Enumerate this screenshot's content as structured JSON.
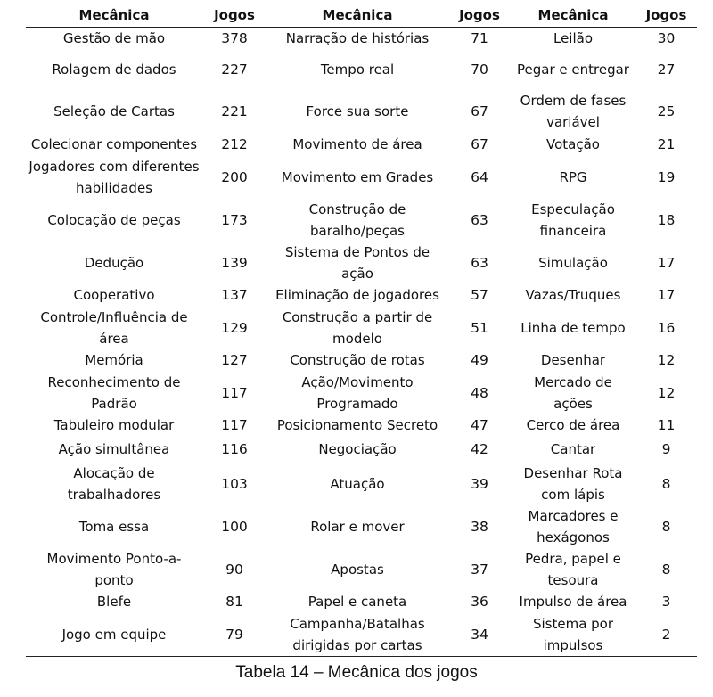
{
  "table": {
    "headers": [
      "Mecânica",
      "Jogos",
      "Mecânica",
      "Jogos",
      "Mecânica",
      "Jogos"
    ],
    "rows": [
      {
        "m1": "Gestão de mão",
        "j1": "378",
        "m2": "Narração de histórias",
        "j2": "71",
        "m3": "Leilão",
        "j3": "30"
      },
      {
        "m1": "Rolagem de dados",
        "j1": "227",
        "m2": "Tempo real",
        "j2": "70",
        "m3": "Pegar e entregar",
        "j3": "27"
      },
      {
        "m1": "Seleção de Cartas",
        "j1": "221",
        "m2": "Force sua sorte",
        "j2": "67",
        "m3": "Ordem de fases variável",
        "j3": "25"
      },
      {
        "m1": "Colecionar componentes",
        "j1": "212",
        "m2": "Movimento de área",
        "j2": "67",
        "m3": "Votação",
        "j3": "21"
      },
      {
        "m1": "Jogadores com diferentes habilidades",
        "j1": "200",
        "m2": "Movimento em Grades",
        "j2": "64",
        "m3": "RPG",
        "j3": "19"
      },
      {
        "m1": "Colocação de peças",
        "j1": "173",
        "m2": "Construção de baralho/peças",
        "j2": "63",
        "m3": "Especulação financeira",
        "j3": "18"
      },
      {
        "m1": "Dedução",
        "j1": "139",
        "m2": "Sistema de Pontos de ação",
        "j2": "63",
        "m3": "Simulação",
        "j3": "17"
      },
      {
        "m1": "Cooperativo",
        "j1": "137",
        "m2": "Eliminação de jogadores",
        "j2": "57",
        "m3": "Vazas/Truques",
        "j3": "17"
      },
      {
        "m1": "Controle/Influência de área",
        "j1": "129",
        "m2": "Construção a partir de modelo",
        "j2": "51",
        "m3": "Linha de tempo",
        "j3": "16"
      },
      {
        "m1": "Memória",
        "j1": "127",
        "m2": "Construção de rotas",
        "j2": "49",
        "m3": "Desenhar",
        "j3": "12"
      },
      {
        "m1": "Reconhecimento de Padrão",
        "j1": "117",
        "m2": "Ação/Movimento Programado",
        "j2": "48",
        "m3": "Mercado de ações",
        "j3": "12"
      },
      {
        "m1": "Tabuleiro modular",
        "j1": "117",
        "m2": "Posicionamento Secreto",
        "j2": "47",
        "m3": "Cerco de área",
        "j3": "11"
      },
      {
        "m1": "Ação simultânea",
        "j1": "116",
        "m2": "Negociação",
        "j2": "42",
        "m3": "Cantar",
        "j3": "9"
      },
      {
        "m1": "Alocação de trabalhadores",
        "j1": "103",
        "m2": "Atuação",
        "j2": "39",
        "m3": "Desenhar Rota com lápis",
        "j3": "8"
      },
      {
        "m1": "Toma essa",
        "j1": "100",
        "m2": "Rolar e mover",
        "j2": "38",
        "m3": "Marcadores e hexágonos",
        "j3": "8"
      },
      {
        "m1": "Movimento Ponto-a-ponto",
        "j1": "90",
        "m2": "Apostas",
        "j2": "37",
        "m3": "Pedra, papel e tesoura",
        "j3": "8"
      },
      {
        "m1": "Blefe",
        "j1": "81",
        "m2": "Papel e caneta",
        "j2": "36",
        "m3": "Impulso de área",
        "j3": "3"
      },
      {
        "m1": "Jogo em equipe",
        "j1": "79",
        "m2": "Campanha/Batalhas dirigidas por cartas",
        "j2": "34",
        "m3": "Sistema por impulsos",
        "j3": "2"
      }
    ]
  },
  "caption": "Tabela 14 – Mecânica dos jogos"
}
